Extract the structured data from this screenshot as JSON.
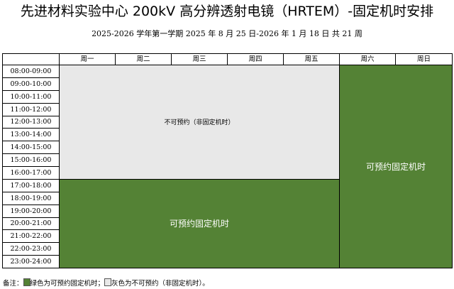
{
  "header": {
    "title": "先进材料实验中心 200kV 高分辨透射电镜（HRTEM）-固定机时安排",
    "subtitle": "2025-2026 学年第一学期  2025 年 8 月 25 日-2026 年 1 月 18 日  共 21 周"
  },
  "table": {
    "days": [
      "周一",
      "周二",
      "周三",
      "周四",
      "周五",
      "周六",
      "周日"
    ],
    "time_slots": [
      "08:00-09:00",
      "09:00-10:00",
      "10:00-11:00",
      "11:00-12:00",
      "12:00-13:00",
      "13:00-14:00",
      "14:00-15:00",
      "15:00-16:00",
      "16:00-17:00",
      "17:00-18:00",
      "18:00-19:00",
      "19:00-20:00",
      "20:00-21:00",
      "21:00-22:00",
      "22:00-23:00",
      "23:00-24:00"
    ],
    "weekday_daytime_label": "不可预约（非固定机时）",
    "weekday_evening_label": "可预约固定机时",
    "weekend_label": "可预约固定机时"
  },
  "legend": {
    "prefix": "备注：",
    "green_text": "绿色为可预约固定机时；",
    "gray_text": "灰色为不可预约（非固定机时）。"
  },
  "colors": {
    "green": "#548235",
    "gray": "#e8e8e8"
  }
}
